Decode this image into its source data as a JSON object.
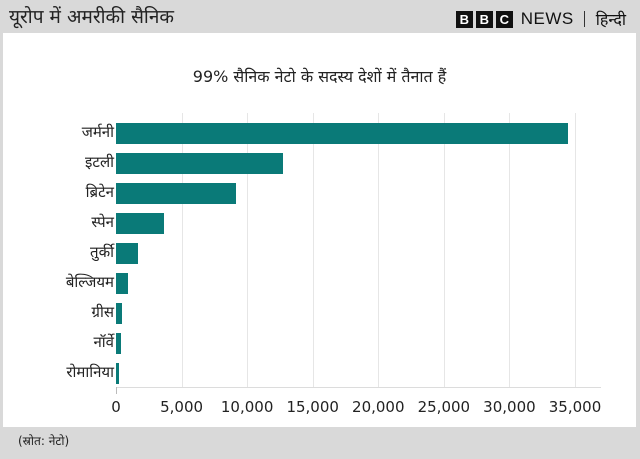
{
  "header": {
    "title": "यूरोप में अमरीकी सैनिक",
    "brand_letters": [
      "B",
      "B",
      "C"
    ],
    "brand_news": "NEWS",
    "brand_lang": "हिन्दी"
  },
  "footer": {
    "source": "(स्रोत: नेटो)"
  },
  "colors": {
    "bar": "#0a7a78",
    "background": "#d9d9d9",
    "panel": "#ffffff"
  },
  "chart_data": {
    "type": "bar",
    "orientation": "horizontal",
    "title": "99% सैनिक नेटो के सदस्य देशों में तैनात हैं",
    "categories": [
      "जर्मनी",
      "इटली",
      "ब्रिटेन",
      "स्पेन",
      "तुर्की",
      "बेल्जियम",
      "ग्रीस",
      "नॉर्वे",
      "रोमानिया"
    ],
    "values": [
      34500,
      12700,
      9150,
      3650,
      1700,
      900,
      450,
      380,
      250
    ],
    "xlabel": "",
    "ylabel": "",
    "xlim": [
      0,
      35000
    ],
    "x_ticks": [
      0,
      5000,
      10000,
      15000,
      20000,
      25000,
      30000,
      35000
    ],
    "x_tick_labels": [
      "0",
      "5,000",
      "10,000",
      "15,000",
      "20,000",
      "25,000",
      "30,000",
      "35,000"
    ],
    "grid": "vertical",
    "legend": "none",
    "source": "(स्रोत: नेटो)"
  }
}
